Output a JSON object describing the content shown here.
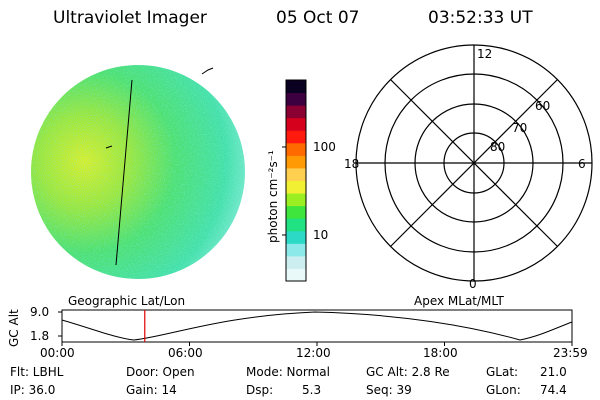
{
  "header": {
    "instrument": "Ultraviolet Imager",
    "date": "05 Oct 07",
    "time": "03:52:33 UT"
  },
  "colorbar": {
    "label": "photon cm⁻²s⁻¹",
    "ticks": [
      "100",
      "10"
    ],
    "colors": [
      "#e9f8f8",
      "#cdeef0",
      "#8be9ea",
      "#2bd9c6",
      "#20e282",
      "#3fe43c",
      "#9aee22",
      "#f2f033",
      "#ffd050",
      "#ff9a05",
      "#ff6a00",
      "#ff1a0d",
      "#d4001c",
      "#8a0032",
      "#3c0040",
      "#0a0020"
    ]
  },
  "polar": {
    "mlt_labels": {
      "top": "12",
      "left": "18",
      "right": "6",
      "bottom": "0"
    },
    "lat_labels": [
      "60",
      "70",
      "80"
    ]
  },
  "labels": {
    "geographic": "Geographic Lat/Lon",
    "apex": "Apex MLat/MLT"
  },
  "gc_plot": {
    "ylabel": "GC Alt",
    "yticks": [
      "9.0",
      "1.8"
    ],
    "xticks": [
      "00:00",
      "06:00",
      "12:00",
      "18:00",
      "23:59"
    ],
    "current_time_fraction": 0.1623,
    "marker_color": "#e00000"
  },
  "footer": {
    "flt": "Flt: LBHL",
    "ip": "IP: 36.0",
    "door": "Door: Open",
    "gain": "Gain: 14",
    "mode": "Mode: Normal",
    "dsp_label": "Dsp:",
    "dsp_value": "5.3",
    "gcalt": "GC Alt: 2.8 Re",
    "seq": "Seq: 39",
    "glat_label": "GLat:",
    "glat_value": "21.0",
    "glon_label": "GLon:",
    "glon_value": "74.4"
  }
}
